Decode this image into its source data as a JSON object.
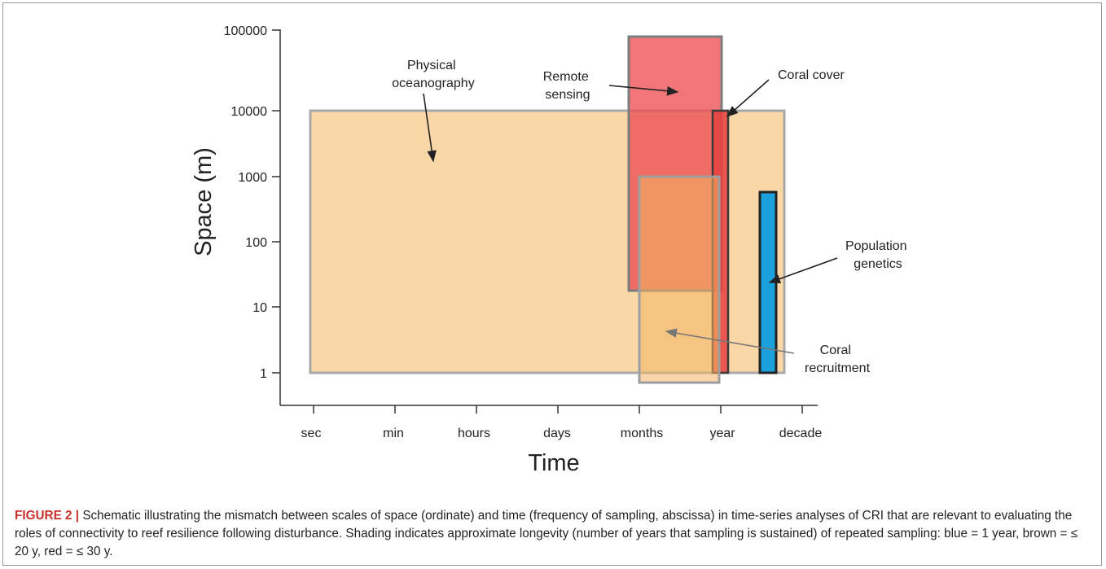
{
  "chart_data": {
    "type": "range-boxes",
    "xlabel": "Time",
    "ylabel": "Space (m)",
    "y_scale": "log",
    "x_categories": [
      "sec",
      "min",
      "hours",
      "days",
      "months",
      "year",
      "decade"
    ],
    "y_ticks": [
      "1",
      "10",
      "100",
      "1000",
      "10000",
      "100000"
    ],
    "boxes": [
      {
        "name": "Physical oceanography",
        "label_lines": [
          "Physical",
          "oceanography"
        ],
        "x_range": [
          "sec",
          "decade"
        ],
        "y_range": [
          1,
          10000
        ],
        "color": "#f9d7a6"
      },
      {
        "name": "Remote sensing",
        "label_lines": [
          "Remote",
          "sensing"
        ],
        "x_range": [
          "months",
          "year"
        ],
        "y_range": [
          18,
          80000
        ],
        "color": "#ec4f55"
      },
      {
        "name": "Coral cover",
        "label_lines": [
          "Coral cover"
        ],
        "x_range": [
          "year",
          "year"
        ],
        "y_range": [
          1,
          10000
        ],
        "color": "#e8413e"
      },
      {
        "name": "Coral recruitment",
        "label_lines": [
          "Coral",
          "recruitment"
        ],
        "x_range": [
          "months",
          "year"
        ],
        "y_range": [
          0.7,
          1000
        ],
        "color": "#f2b563"
      },
      {
        "name": "Population genetics",
        "label_lines": [
          "Population",
          "genetics"
        ],
        "x_range": [
          "year",
          "decade"
        ],
        "y_range": [
          1,
          600
        ],
        "color": "#1aa1dc"
      }
    ]
  },
  "caption": {
    "label": "FIGURE 2 |",
    "text": " Schematic illustrating the mismatch between scales of space (ordinate) and time (frequency of sampling, abscissa) in time-series analyses of CRI that are relevant to evaluating the roles of connectivity to reef resilience following disturbance. Shading indicates approximate longevity (number of years that sampling is sustained) of repeated sampling: blue = 1 year, brown = ≤ 20 y, red = ≤ 30 y."
  }
}
